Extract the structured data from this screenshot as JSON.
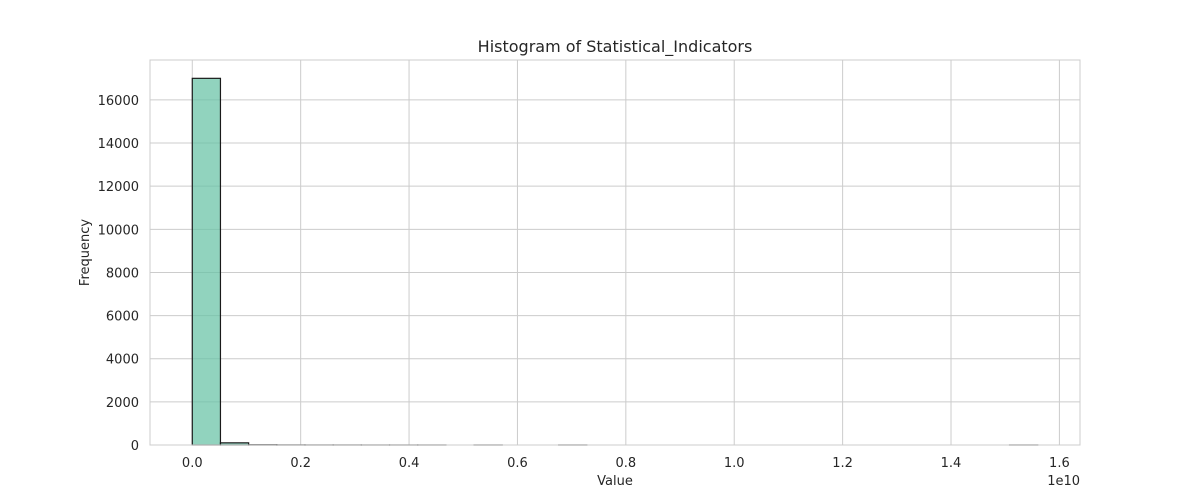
{
  "chart_data": {
    "type": "bar",
    "title": "Histogram of Statistical_Indicators",
    "xlabel": "Value",
    "ylabel": "Frequency",
    "x_offset_text": "1e10",
    "xlim": [
      -0.078,
      1.638
    ],
    "ylim": [
      0,
      17850
    ],
    "x_ticks": [
      0.0,
      0.2,
      0.4,
      0.6,
      0.8,
      1.0,
      1.2,
      1.4,
      1.6
    ],
    "x_tick_labels": [
      "0.0",
      "0.2",
      "0.4",
      "0.6",
      "0.8",
      "1.0",
      "1.2",
      "1.4",
      "1.6"
    ],
    "y_ticks": [
      0,
      2000,
      4000,
      6000,
      8000,
      10000,
      12000,
      14000,
      16000
    ],
    "y_tick_labels": [
      "0",
      "2000",
      "4000",
      "6000",
      "8000",
      "10000",
      "12000",
      "14000",
      "16000"
    ],
    "bin_edges": [
      0.0,
      0.052,
      0.104,
      0.156,
      0.208,
      0.26,
      0.312,
      0.364,
      0.416,
      0.468,
      0.52,
      0.572,
      0.624,
      0.676,
      0.728,
      0.78,
      0.832,
      0.884,
      0.936,
      0.988,
      1.04,
      1.092,
      1.144,
      1.196,
      1.248,
      1.3,
      1.352,
      1.404,
      1.456,
      1.508,
      1.56
    ],
    "counts": [
      17000,
      100,
      10,
      4,
      2,
      2,
      1,
      1,
      1,
      0,
      1,
      0,
      0,
      1,
      0,
      0,
      0,
      0,
      0,
      0,
      0,
      0,
      0,
      0,
      0,
      0,
      0,
      0,
      0,
      1
    ],
    "grid": true,
    "colors": {
      "bar_fill": "#66c2a5",
      "bar_edge": "#1a1a1a",
      "grid": "#cccccc",
      "spine": "#cccccc",
      "text": "#262626"
    }
  }
}
